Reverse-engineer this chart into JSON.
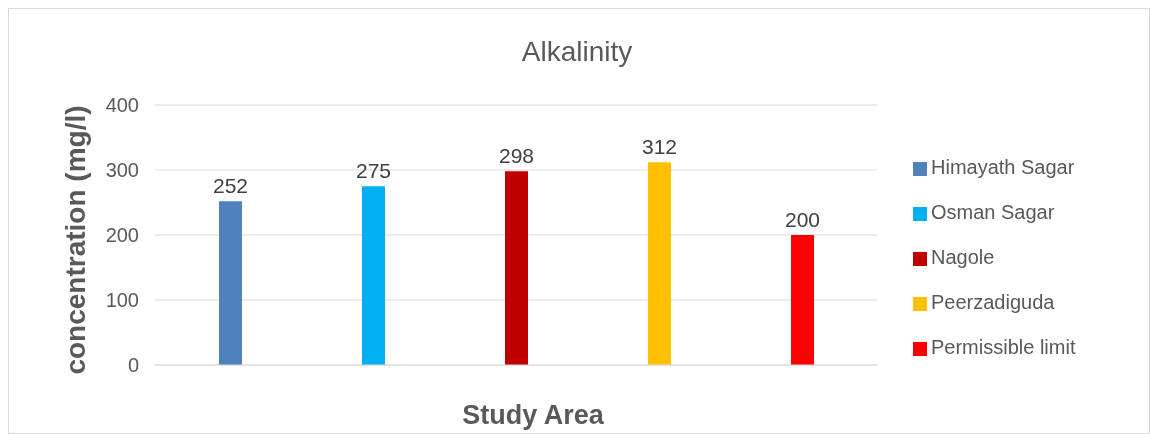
{
  "chart_data": {
    "type": "bar",
    "title": "Alkalinity",
    "xlabel": "Study Area",
    "ylabel": "concentration (mg/l)",
    "categories": [
      null
    ],
    "series": [
      {
        "name": "Himayath Sagar",
        "color": "#4f81bd",
        "values": [
          252
        ]
      },
      {
        "name": "Osman Sagar",
        "color": "#00b0f0",
        "values": [
          275
        ]
      },
      {
        "name": "Nagole",
        "color": "#c00000",
        "values": [
          298
        ]
      },
      {
        "name": "Peerzadiguda",
        "color": "#ffc000",
        "values": [
          312
        ]
      },
      {
        "name": "Permissible limit",
        "color": "#ff0000",
        "values": [
          200
        ]
      }
    ],
    "ylim": [
      0,
      400
    ],
    "yticks": [
      0,
      100,
      200,
      300,
      400
    ],
    "grid": "y",
    "legend": "right",
    "data_labels": true
  }
}
